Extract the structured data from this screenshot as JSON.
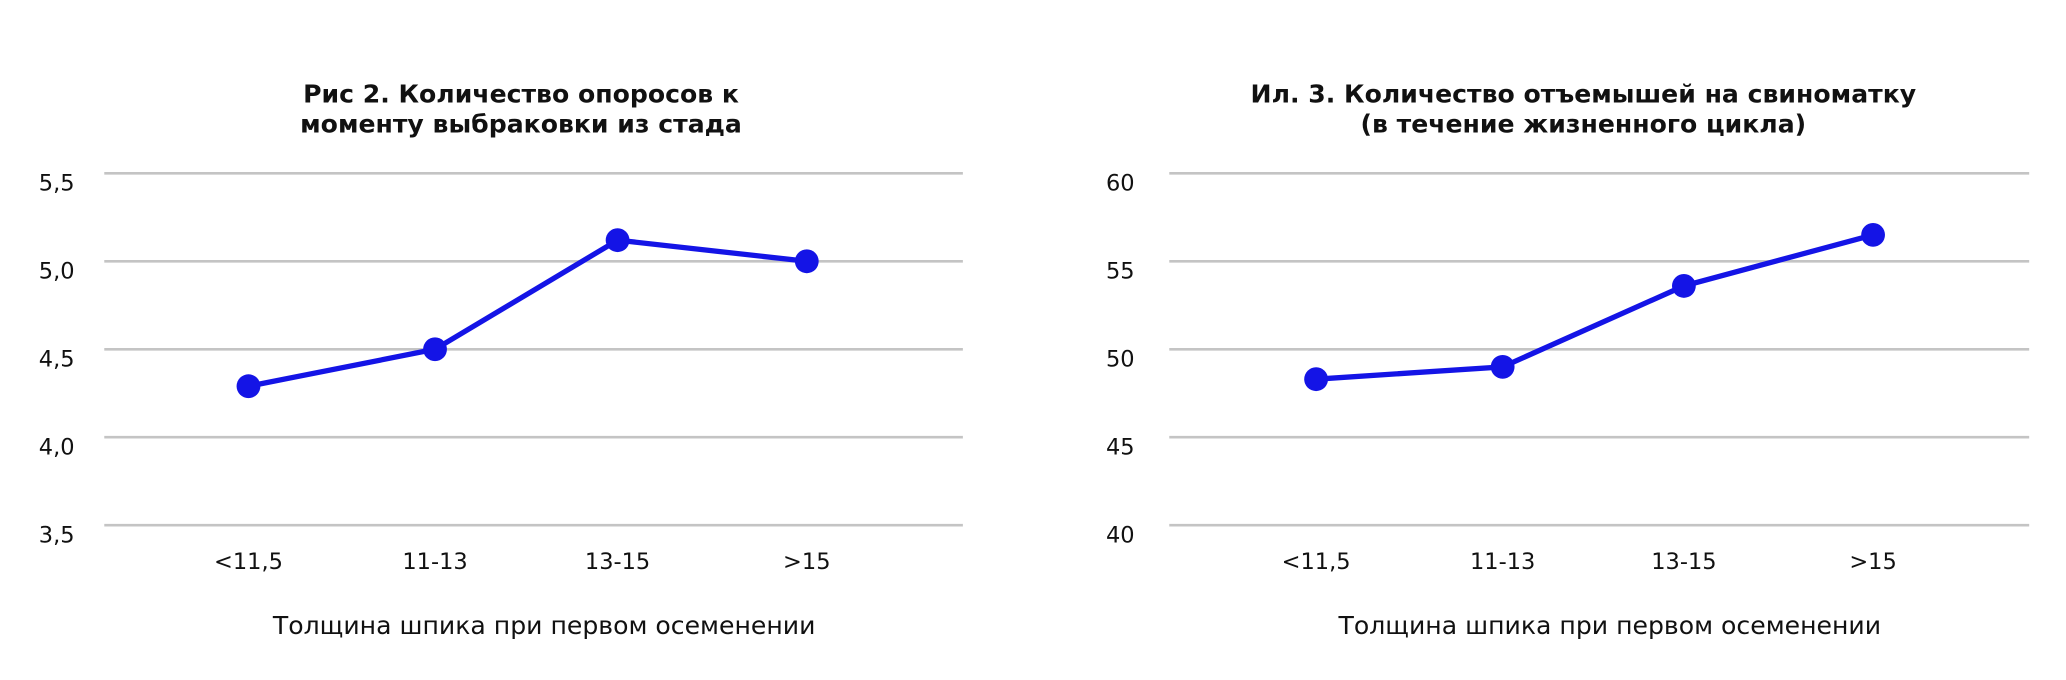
{
  "chart_data": [
    {
      "type": "line",
      "title": [
        "Рис 2. Количество опоросов к",
        "моменту выбраковки из стада"
      ],
      "x_label": "Толщина шпика при первом осеменении",
      "categories": [
        "<11,5",
        "11-13",
        "13-15",
        ">15"
      ],
      "series": [
        {
          "color": "#1414e6",
          "values": [
            4.29,
            4.5,
            5.12,
            5.0
          ]
        }
      ],
      "ylim": [
        3.5,
        5.5
      ],
      "yticks": [
        {
          "value": 3.5,
          "label": "3,5"
        },
        {
          "value": 4.0,
          "label": "4,0"
        },
        {
          "value": 4.5,
          "label": "4,5"
        },
        {
          "value": 5.0,
          "label": "5,0"
        },
        {
          "value": 5.5,
          "label": "5,5"
        }
      ],
      "grid": true
    },
    {
      "type": "line",
      "title": [
        "Ил. 3. Количество отъемышей на свиноматку",
        "(в течение жизненного цикла)"
      ],
      "x_label": "Толщина шпика при первом осеменении",
      "categories": [
        "<11,5",
        "11-13",
        "13-15",
        ">15"
      ],
      "series": [
        {
          "color": "#1414e6",
          "values": [
            48.3,
            49.0,
            53.6,
            56.5
          ]
        }
      ],
      "ylim": [
        40,
        60
      ],
      "yticks": [
        40,
        45,
        50,
        55,
        60
      ],
      "grid": true
    }
  ]
}
